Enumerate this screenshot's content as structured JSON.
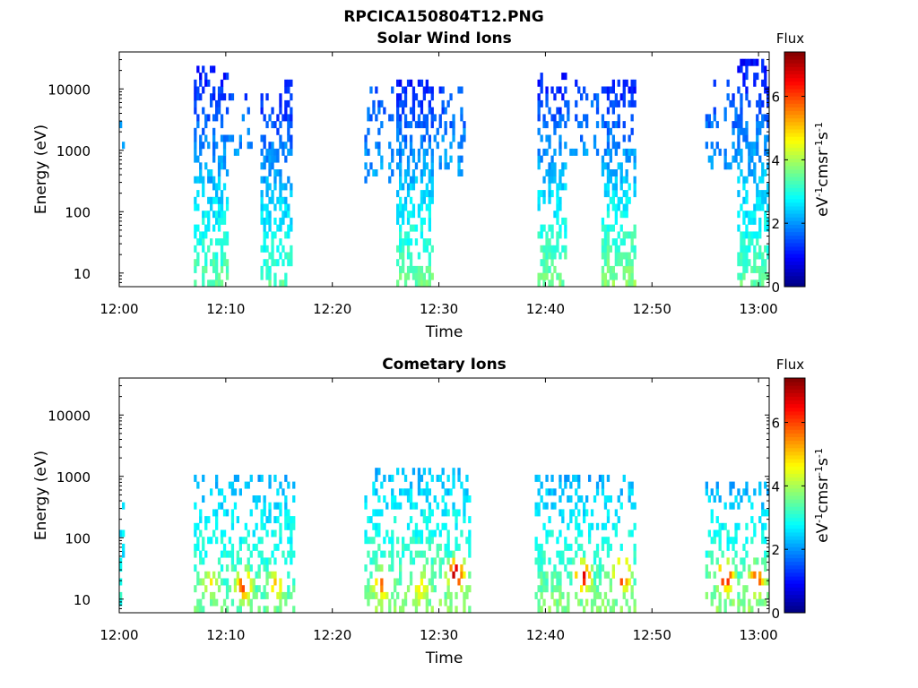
{
  "figure_title": "RPCICA150804T12.PNG",
  "chart_data": [
    {
      "type": "heatmap",
      "title": "Solar Wind Ions",
      "xlabel": "Time",
      "ylabel": "Energy (eV)",
      "x_ticks": [
        "12:00",
        "12:10",
        "12:20",
        "12:30",
        "12:40",
        "12:50",
        "13:00"
      ],
      "x_range_minutes": [
        0,
        61
      ],
      "y_scale": "log",
      "y_ticks": [
        "10",
        "100",
        "1000",
        "10000"
      ],
      "y_range_eV": [
        6,
        40000
      ],
      "colorbar": {
        "title": "Flux",
        "label": "eV-1cm-2sr-1s-1",
        "range": [
          0,
          7.4
        ],
        "ticks": [
          "0",
          "2",
          "4",
          "6"
        ],
        "colormap": "jet"
      },
      "bursts": [
        {
          "t_start": 0,
          "t_end": 0.6,
          "e_min": 500,
          "e_max": 4500,
          "flux_low": 2.3,
          "flux_high": 1.7,
          "density": 0.25
        },
        {
          "t_start": 7,
          "t_end": 10.2,
          "e_min": 6,
          "e_max": 22000,
          "flux_low": 3.5,
          "flux_high": 1.0,
          "density": 0.55
        },
        {
          "t_start": 10.3,
          "t_end": 12.5,
          "e_min": 900,
          "e_max": 12000,
          "flux_low": 2.0,
          "flux_high": 1.4,
          "density": 0.22
        },
        {
          "t_start": 13.3,
          "t_end": 16.3,
          "e_min": 6,
          "e_max": 15000,
          "flux_low": 3.4,
          "flux_high": 1.0,
          "density": 0.55
        },
        {
          "t_start": 23.0,
          "t_end": 26.0,
          "e_min": 300,
          "e_max": 12000,
          "flux_low": 2.1,
          "flux_high": 1.5,
          "density": 0.3
        },
        {
          "t_start": 26.0,
          "t_end": 29.5,
          "e_min": 6,
          "e_max": 16000,
          "flux_low": 3.6,
          "flux_high": 1.0,
          "density": 0.58
        },
        {
          "t_start": 29.5,
          "t_end": 32.5,
          "e_min": 400,
          "e_max": 10000,
          "flux_low": 2.2,
          "flux_high": 1.4,
          "density": 0.3
        },
        {
          "t_start": 39.2,
          "t_end": 42.0,
          "e_min": 6,
          "e_max": 20000,
          "flux_low": 3.6,
          "flux_high": 1.0,
          "density": 0.58
        },
        {
          "t_start": 42.0,
          "t_end": 45.0,
          "e_min": 800,
          "e_max": 14000,
          "flux_low": 2.0,
          "flux_high": 1.4,
          "density": 0.25
        },
        {
          "t_start": 45.3,
          "t_end": 48.5,
          "e_min": 6,
          "e_max": 16000,
          "flux_low": 3.8,
          "flux_high": 1.0,
          "density": 0.58
        },
        {
          "t_start": 55.0,
          "t_end": 58.0,
          "e_min": 500,
          "e_max": 14000,
          "flux_low": 2.0,
          "flux_high": 1.4,
          "density": 0.28
        },
        {
          "t_start": 58.0,
          "t_end": 61,
          "e_min": 6,
          "e_max": 30000,
          "flux_low": 3.5,
          "flux_high": 1.0,
          "density": 0.58
        }
      ]
    },
    {
      "type": "heatmap",
      "title": "Cometary Ions",
      "xlabel": "Time",
      "ylabel": "Energy (eV)",
      "x_ticks": [
        "12:00",
        "12:10",
        "12:20",
        "12:30",
        "12:40",
        "12:50",
        "13:00"
      ],
      "x_range_minutes": [
        0,
        61
      ],
      "y_scale": "log",
      "y_ticks": [
        "10",
        "100",
        "1000",
        "10000"
      ],
      "y_range_eV": [
        6,
        40000
      ],
      "colorbar": {
        "title": "Flux",
        "label": "eV-1cm-2sr-1s-1",
        "range": [
          0,
          7.4
        ],
        "ticks": [
          "0",
          "2",
          "4",
          "6"
        ],
        "colormap": "jet"
      },
      "bursts": [
        {
          "t_start": 0,
          "t_end": 0.6,
          "e_min": 6,
          "e_max": 350,
          "flux_low": 3.2,
          "flux_high": 2.3,
          "density": 0.35
        },
        {
          "t_start": 7,
          "t_end": 16.5,
          "e_min": 6,
          "e_max": 1200,
          "flux_low": 3.6,
          "flux_high": 2.2,
          "density": 0.42
        },
        {
          "t_start": 23.0,
          "t_end": 33.0,
          "e_min": 6,
          "e_max": 1500,
          "flux_low": 3.8,
          "flux_high": 2.2,
          "density": 0.42
        },
        {
          "t_start": 39.0,
          "t_end": 48.5,
          "e_min": 6,
          "e_max": 1000,
          "flux_low": 3.8,
          "flux_high": 2.2,
          "density": 0.42
        },
        {
          "t_start": 55.0,
          "t_end": 61,
          "e_min": 6,
          "e_max": 800,
          "flux_low": 3.8,
          "flux_high": 2.2,
          "density": 0.42
        }
      ],
      "hotspots": [
        {
          "t": 8.6,
          "e": 18,
          "flux": 4.8
        },
        {
          "t": 11.7,
          "e": 17,
          "flux": 6.2
        },
        {
          "t": 14.7,
          "e": 17,
          "flux": 5.2
        },
        {
          "t": 24.7,
          "e": 18,
          "flux": 5.8
        },
        {
          "t": 28.3,
          "e": 16,
          "flux": 4.8
        },
        {
          "t": 31.6,
          "e": 26,
          "flux": 7.3
        },
        {
          "t": 43.5,
          "e": 24,
          "flux": 6.8
        },
        {
          "t": 47.2,
          "e": 26,
          "flux": 7.0
        },
        {
          "t": 56.9,
          "e": 24,
          "flux": 7.0
        },
        {
          "t": 59.8,
          "e": 20,
          "flux": 6.2
        }
      ]
    }
  ]
}
